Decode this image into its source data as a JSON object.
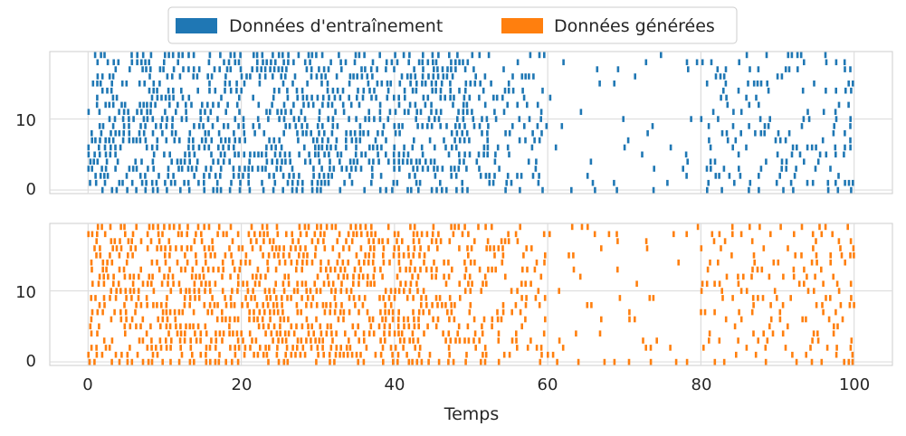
{
  "chart_data": {
    "type": "raster",
    "title": "",
    "xlabel": "Temps",
    "xlim": [
      -5,
      105
    ],
    "ylim": [
      -0.5,
      19.5
    ],
    "xticks": [
      0,
      20,
      40,
      60,
      80,
      100
    ],
    "xtick_labels": [
      "0",
      "20",
      "40",
      "60",
      "80",
      "100"
    ],
    "yticks": [
      0,
      10
    ],
    "ytick_labels": [
      "0",
      "10"
    ],
    "grid": true,
    "legend_position": "top-center",
    "legend": [
      {
        "label": "Données d'entraînement",
        "color": "#1f77b4"
      },
      {
        "label": "Données générées",
        "color": "#ff7f0e"
      }
    ],
    "series": [
      {
        "name": "Données d'entraînement",
        "color": "#1f77b4",
        "rows": 20,
        "time_range": [
          0,
          100
        ],
        "seed": 7,
        "density_segments": [
          [
            0,
            50,
            0.55
          ],
          [
            50,
            60,
            0.3
          ],
          [
            60,
            80,
            0.06
          ],
          [
            80,
            100,
            0.22
          ]
        ]
      },
      {
        "name": "Données générées",
        "color": "#ff7f0e",
        "rows": 20,
        "time_range": [
          0,
          100
        ],
        "seed": 23,
        "density_segments": [
          [
            0,
            50,
            0.55
          ],
          [
            50,
            60,
            0.3
          ],
          [
            60,
            80,
            0.06
          ],
          [
            80,
            100,
            0.22
          ]
        ]
      }
    ]
  }
}
